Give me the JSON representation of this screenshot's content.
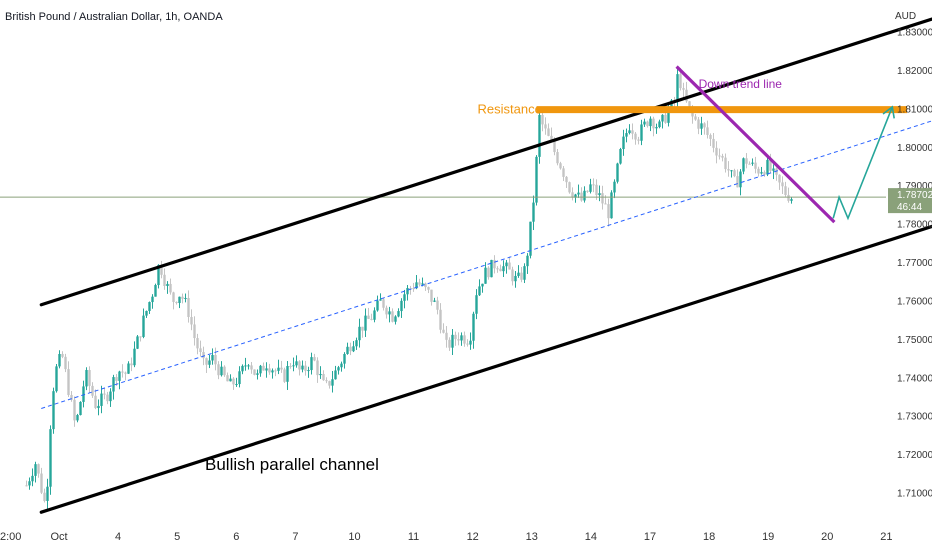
{
  "header": {
    "title": "British Pound / Australian Dollar, 1h, OANDA"
  },
  "chart_data": {
    "type": "candlestick",
    "title": "British Pound / Australian Dollar, 1h, OANDA",
    "currency_label": "AUD",
    "ylim": [
      1.7035,
      1.8365
    ],
    "y_ticks": [
      {
        "value": 1.83,
        "label": "1.83000"
      },
      {
        "value": 1.82,
        "label": "1.82000"
      },
      {
        "value": 1.81,
        "label": "1.81000"
      },
      {
        "value": 1.8,
        "label": "1.80000"
      },
      {
        "value": 1.79,
        "label": "1.79000"
      },
      {
        "value": 1.78,
        "label": "1.78000"
      },
      {
        "value": 1.77,
        "label": "1.77000"
      },
      {
        "value": 1.76,
        "label": "1.76000"
      },
      {
        "value": 1.75,
        "label": "1.75000"
      },
      {
        "value": 1.74,
        "label": "1.74000"
      },
      {
        "value": 1.73,
        "label": "1.73000"
      },
      {
        "value": 1.72,
        "label": "1.72000"
      },
      {
        "value": 1.71,
        "label": "1.71000"
      }
    ],
    "x_ticks": [
      {
        "t": -0.33,
        "label": "2:00"
      },
      {
        "t": 0,
        "label": "Oct"
      },
      {
        "t": 1,
        "label": "4"
      },
      {
        "t": 2,
        "label": "5"
      },
      {
        "t": 3,
        "label": "6"
      },
      {
        "t": 4,
        "label": "7"
      },
      {
        "t": 5,
        "label": "10"
      },
      {
        "t": 6,
        "label": "11"
      },
      {
        "t": 7,
        "label": "12"
      },
      {
        "t": 8,
        "label": "13"
      },
      {
        "t": 9,
        "label": "14"
      },
      {
        "t": 10,
        "label": "17"
      },
      {
        "t": 11,
        "label": "18"
      },
      {
        "t": 12,
        "label": "19"
      },
      {
        "t": 13,
        "label": "20"
      },
      {
        "t": 14,
        "label": "21"
      }
    ],
    "current_price": {
      "value": 1.78702,
      "label": "1.78702",
      "countdown": "46:44",
      "color": "#8aa17a"
    },
    "price_path": [
      [
        -0.55,
        1.712
      ],
      [
        -0.4,
        1.718
      ],
      [
        -0.22,
        1.706
      ],
      [
        -0.12,
        1.735
      ],
      [
        -0.05,
        1.742
      ],
      [
        0.05,
        1.746
      ],
      [
        0.15,
        1.738
      ],
      [
        0.28,
        1.727
      ],
      [
        0.45,
        1.741
      ],
      [
        0.62,
        1.733
      ],
      [
        0.8,
        1.735
      ],
      [
        1.0,
        1.742
      ],
      [
        1.15,
        1.741
      ],
      [
        1.3,
        1.748
      ],
      [
        1.45,
        1.756
      ],
      [
        1.58,
        1.762
      ],
      [
        1.7,
        1.77
      ],
      [
        1.8,
        1.765
      ],
      [
        1.92,
        1.76
      ],
      [
        2.05,
        1.762
      ],
      [
        2.18,
        1.758
      ],
      [
        2.3,
        1.75
      ],
      [
        2.45,
        1.743
      ],
      [
        2.6,
        1.745
      ],
      [
        2.75,
        1.741
      ],
      [
        2.9,
        1.738
      ],
      [
        3.05,
        1.74
      ],
      [
        3.2,
        1.745
      ],
      [
        3.35,
        1.74
      ],
      [
        3.5,
        1.744
      ],
      [
        3.65,
        1.742
      ],
      [
        3.8,
        1.74
      ],
      [
        3.95,
        1.745
      ],
      [
        4.1,
        1.741
      ],
      [
        4.3,
        1.745
      ],
      [
        4.5,
        1.737
      ],
      [
        4.7,
        1.742
      ],
      [
        4.9,
        1.748
      ],
      [
        5.1,
        1.753
      ],
      [
        5.3,
        1.756
      ],
      [
        5.45,
        1.76
      ],
      [
        5.65,
        1.756
      ],
      [
        5.85,
        1.762
      ],
      [
        6.05,
        1.765
      ],
      [
        6.25,
        1.762
      ],
      [
        6.4,
        1.758
      ],
      [
        6.55,
        1.748
      ],
      [
        6.75,
        1.751
      ],
      [
        6.95,
        1.75
      ],
      [
        7.05,
        1.762
      ],
      [
        7.2,
        1.767
      ],
      [
        7.4,
        1.77
      ],
      [
        7.6,
        1.768
      ],
      [
        7.75,
        1.765
      ],
      [
        7.88,
        1.768
      ],
      [
        7.95,
        1.775
      ],
      [
        8.0,
        1.782
      ],
      [
        8.06,
        1.791
      ],
      [
        8.12,
        1.808
      ],
      [
        8.2,
        1.805
      ],
      [
        8.35,
        1.8
      ],
      [
        8.5,
        1.795
      ],
      [
        8.65,
        1.789
      ],
      [
        8.85,
        1.786
      ],
      [
        9.0,
        1.79
      ],
      [
        9.15,
        1.787
      ],
      [
        9.3,
        1.783
      ],
      [
        9.4,
        1.79
      ],
      [
        9.52,
        1.8
      ],
      [
        9.65,
        1.806
      ],
      [
        9.8,
        1.803
      ],
      [
        10.0,
        1.808
      ],
      [
        10.15,
        1.805
      ],
      [
        10.3,
        1.809
      ],
      [
        10.42,
        1.812
      ],
      [
        10.48,
        1.82
      ],
      [
        10.55,
        1.814
      ],
      [
        10.7,
        1.808
      ],
      [
        10.9,
        1.805
      ],
      [
        11.1,
        1.8
      ],
      [
        11.3,
        1.795
      ],
      [
        11.45,
        1.79
      ],
      [
        11.6,
        1.797
      ],
      [
        11.8,
        1.794
      ],
      [
        12.0,
        1.795
      ],
      [
        12.15,
        1.791
      ],
      [
        12.3,
        1.788
      ],
      [
        12.4,
        1.787
      ]
    ],
    "channel_upper": [
      [
        -0.3,
        1.759
      ],
      [
        15.1,
        1.835
      ]
    ],
    "channel_lower": [
      [
        -0.3,
        1.705
      ],
      [
        15.1,
        1.781
      ]
    ],
    "channel_mid": [
      [
        -0.3,
        1.732
      ],
      [
        15.1,
        1.8085
      ]
    ],
    "resistance": {
      "t": [
        8.08,
        14.35
      ],
      "value": 1.8098,
      "label": "Resistance",
      "color": "#f0960e"
    },
    "down_trend_line": {
      "points": [
        [
          10.45,
          1.821
        ],
        [
          13.12,
          1.7805
        ]
      ],
      "label": "Down trend line",
      "color": "#9c27b0"
    },
    "projection": {
      "points": [
        [
          13.1,
          1.7815
        ],
        [
          13.2,
          1.787
        ],
        [
          13.35,
          1.7815
        ],
        [
          14.1,
          1.8105
        ]
      ],
      "color": "#26a69a"
    },
    "annotations": {
      "channel_label": "Bullish parallel channel",
      "resistance_label": "Resistance",
      "trend_label": "Down trend line"
    },
    "colors": {
      "up": "#26a69a",
      "down": "#c4c4c4",
      "channel": "#000000",
      "mid_line": "#2962ff",
      "resistance": "#f0960e",
      "trend": "#9c27b0",
      "current_price": "#8aa17a",
      "projection": "#26a69a"
    }
  }
}
